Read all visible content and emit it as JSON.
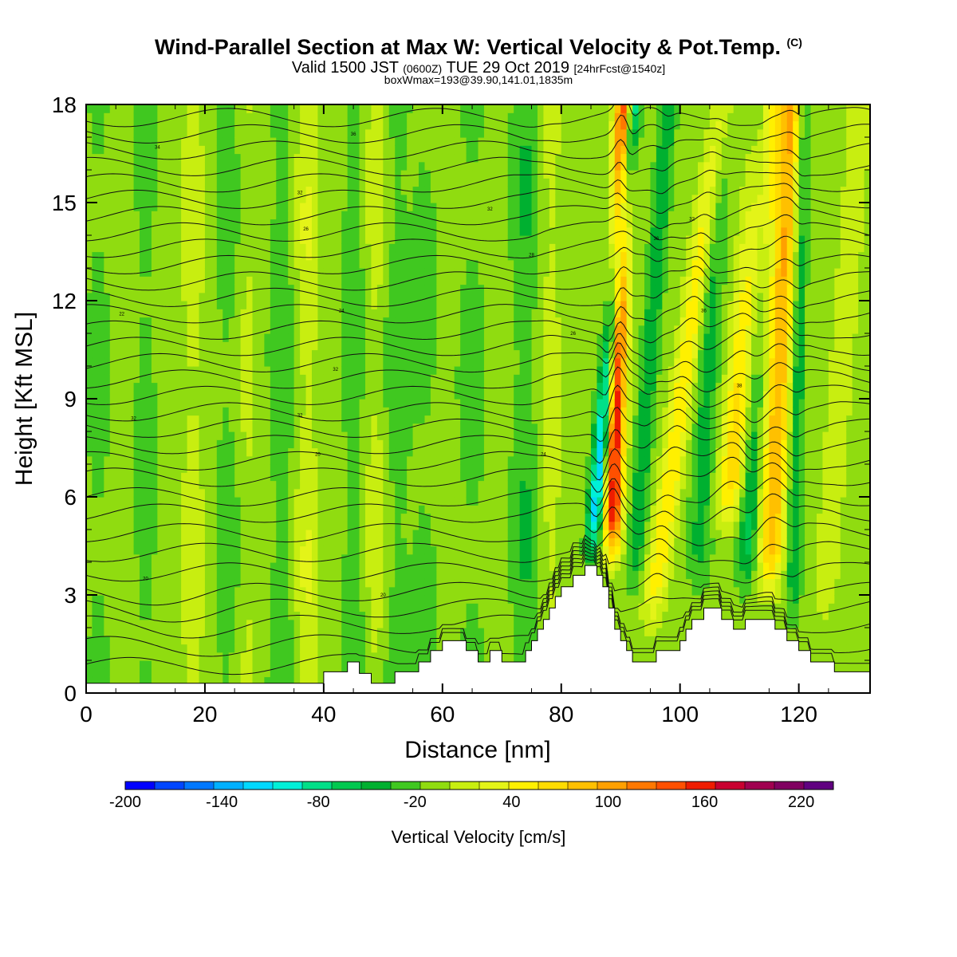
{
  "title": {
    "main": "Wind-Parallel Section at Max W: Vertical Velocity & Pot.Temp.",
    "copyright": "(C)",
    "valid_prefix": "Valid 1500 JST",
    "valid_utc": "(0600Z)",
    "valid_date": "TUE 29 Oct 2019",
    "forecast": "[24hrFcst@1540z]",
    "box_info": "boxWmax=193@39.90,141.01,1835m"
  },
  "chart_data": {
    "type": "heatmap",
    "xlabel": "Distance [nm]",
    "ylabel": "Height [Kft MSL]",
    "xlim": [
      0,
      132
    ],
    "ylim": [
      0,
      18
    ],
    "x_ticks": [
      0,
      20,
      40,
      60,
      80,
      100,
      120
    ],
    "y_ticks": [
      0,
      3,
      6,
      9,
      12,
      15,
      18
    ],
    "colorbar": {
      "label": "Vertical Velocity [cm/s]",
      "min": -200,
      "max": 240,
      "step": 20,
      "tick_labels": [
        "-200",
        "-140",
        "-80",
        "-20",
        "40",
        "100",
        "160",
        "220"
      ],
      "colors": [
        "#0000ff",
        "#0046ff",
        "#0078ff",
        "#00b0ff",
        "#00d8ff",
        "#00f0d8",
        "#00e088",
        "#00c850",
        "#00b030",
        "#40c820",
        "#90dc10",
        "#c8ee10",
        "#e4f418",
        "#fff000",
        "#ffdc00",
        "#ffc000",
        "#ffa000",
        "#ff7800",
        "#ff5000",
        "#ee1c00",
        "#c80030",
        "#a00050",
        "#800060",
        "#600080"
      ]
    },
    "terrain_kft": [
      [
        0,
        0.3
      ],
      [
        40,
        0.3
      ],
      [
        40,
        0.65
      ],
      [
        44,
        0.65
      ],
      [
        44,
        0.95
      ],
      [
        46,
        0.95
      ],
      [
        46,
        0.6
      ],
      [
        48,
        0.6
      ],
      [
        48,
        0.3
      ],
      [
        52,
        0.3
      ],
      [
        52,
        0.65
      ],
      [
        56,
        0.65
      ],
      [
        56,
        0.95
      ],
      [
        58,
        0.95
      ],
      [
        58,
        1.3
      ],
      [
        60,
        1.3
      ],
      [
        60,
        1.6
      ],
      [
        64,
        1.6
      ],
      [
        64,
        1.3
      ],
      [
        66,
        1.3
      ],
      [
        66,
        0.95
      ],
      [
        68,
        0.95
      ],
      [
        68,
        1.3
      ],
      [
        70,
        1.3
      ],
      [
        70,
        0.95
      ],
      [
        74,
        0.95
      ],
      [
        74,
        1.3
      ],
      [
        75,
        1.3
      ],
      [
        75,
        1.6
      ],
      [
        76,
        1.6
      ],
      [
        76,
        1.95
      ],
      [
        77,
        1.95
      ],
      [
        77,
        2.25
      ],
      [
        78,
        2.25
      ],
      [
        78,
        2.6
      ],
      [
        79,
        2.6
      ],
      [
        79,
        2.95
      ],
      [
        80,
        2.95
      ],
      [
        80,
        3.25
      ],
      [
        82,
        3.25
      ],
      [
        82,
        3.6
      ],
      [
        84,
        3.6
      ],
      [
        84,
        3.9
      ],
      [
        86,
        3.9
      ],
      [
        86,
        3.6
      ],
      [
        87,
        3.6
      ],
      [
        87,
        3.25
      ],
      [
        88,
        3.25
      ],
      [
        88,
        2.6
      ],
      [
        89,
        2.6
      ],
      [
        89,
        1.95
      ],
      [
        90,
        1.95
      ],
      [
        90,
        1.6
      ],
      [
        91,
        1.6
      ],
      [
        91,
        1.3
      ],
      [
        92,
        1.3
      ],
      [
        92,
        0.95
      ],
      [
        96,
        0.95
      ],
      [
        96,
        1.3
      ],
      [
        100,
        1.3
      ],
      [
        100,
        1.6
      ],
      [
        101,
        1.6
      ],
      [
        101,
        1.95
      ],
      [
        102,
        1.95
      ],
      [
        102,
        2.25
      ],
      [
        104,
        2.25
      ],
      [
        104,
        2.6
      ],
      [
        107,
        2.6
      ],
      [
        107,
        2.25
      ],
      [
        109,
        2.25
      ],
      [
        109,
        1.95
      ],
      [
        111,
        1.95
      ],
      [
        111,
        2.25
      ],
      [
        116,
        2.25
      ],
      [
        116,
        1.95
      ],
      [
        118,
        1.95
      ],
      [
        118,
        1.6
      ],
      [
        120,
        1.6
      ],
      [
        120,
        1.3
      ],
      [
        122,
        1.3
      ],
      [
        122,
        0.95
      ],
      [
        126,
        0.95
      ],
      [
        126,
        0.65
      ],
      [
        132,
        0.65
      ]
    ],
    "w_field": {
      "description_units": "cm/s",
      "background": 10,
      "features": [
        {
          "kind": "wave",
          "x0": 85,
          "z0": 4,
          "z1": 18,
          "slope": 0.5,
          "width": 1.3,
          "amp": -130
        },
        {
          "kind": "wave",
          "x0": 88.5,
          "z0": 4,
          "z1": 18,
          "slope": 0.15,
          "width": 1.5,
          "amp": 190
        },
        {
          "kind": "wave",
          "x0": 92,
          "z0": 3,
          "z1": 18,
          "slope": 0.4,
          "width": 1.4,
          "amp": -50
        },
        {
          "kind": "wave",
          "x0": 95,
          "z0": 2,
          "z1": 18,
          "slope": 0.75,
          "width": 1.8,
          "amp": 70
        },
        {
          "kind": "wave",
          "x0": 103,
          "z0": 3,
          "z1": 18,
          "slope": 0.25,
          "width": 2.0,
          "amp": -40
        },
        {
          "kind": "wave",
          "x0": 108,
          "z0": 5,
          "z1": 18,
          "slope": 0.55,
          "width": 2.4,
          "amp": 90
        },
        {
          "kind": "wave",
          "x0": 111,
          "z0": 3,
          "z1": 18,
          "slope": 0.2,
          "width": 1.8,
          "amp": -60
        },
        {
          "kind": "wave",
          "x0": 115,
          "z0": 3,
          "z1": 18,
          "slope": 0.25,
          "width": 2.0,
          "amp": 110
        },
        {
          "kind": "wave",
          "x0": 119,
          "z0": 2,
          "z1": 18,
          "slope": 0.1,
          "width": 1.2,
          "amp": -50
        },
        {
          "kind": "wave",
          "x0": 124,
          "z0": 2,
          "z1": 18,
          "slope": 0.4,
          "width": 2.0,
          "amp": 25
        },
        {
          "kind": "band",
          "x0": 2,
          "width": 2.5,
          "amp": -20
        },
        {
          "kind": "band",
          "x0": 10,
          "width": 2.0,
          "amp": -25
        },
        {
          "kind": "band",
          "x0": 18,
          "width": 2.0,
          "amp": 25
        },
        {
          "kind": "band",
          "x0": 24,
          "width": 2.5,
          "amp": -25
        },
        {
          "kind": "band",
          "x0": 27,
          "width": 2.0,
          "amp": 20
        },
        {
          "kind": "band",
          "x0": 33,
          "width": 2.5,
          "amp": -30
        },
        {
          "kind": "band",
          "x0": 37,
          "width": 2.0,
          "amp": 35
        },
        {
          "kind": "band",
          "x0": 45,
          "width": 2.0,
          "amp": -30
        },
        {
          "kind": "band",
          "x0": 49,
          "width": 2.0,
          "amp": 30
        },
        {
          "kind": "band",
          "x0": 52,
          "width": 2.5,
          "amp": -30
        },
        {
          "kind": "band",
          "x0": 57,
          "width": 2.5,
          "amp": -20
        },
        {
          "kind": "band",
          "x0": 65,
          "width": 3.0,
          "amp": -20
        },
        {
          "kind": "band",
          "x0": 74,
          "width": 2.5,
          "amp": -35
        },
        {
          "kind": "band",
          "x0": 78,
          "width": 1.8,
          "amp": 30
        }
      ]
    },
    "theta_contours": {
      "base_levels_kft": [
        0.9,
        1.5,
        2.1,
        2.6,
        3.1,
        3.7,
        4.3,
        4.9,
        5.5,
        6.0,
        6.6,
        7.1,
        7.6,
        8.1,
        8.6,
        9.1,
        9.6,
        10.1,
        10.6,
        11.1,
        11.6,
        12.1,
        12.6,
        13.1,
        13.6,
        14.1,
        14.6,
        15.1,
        15.6,
        16.1,
        16.6,
        17.1,
        17.6
      ],
      "label_text": [
        "20",
        "22",
        "24",
        "26",
        "28",
        "30",
        "32",
        "34",
        "36",
        "38"
      ]
    }
  }
}
